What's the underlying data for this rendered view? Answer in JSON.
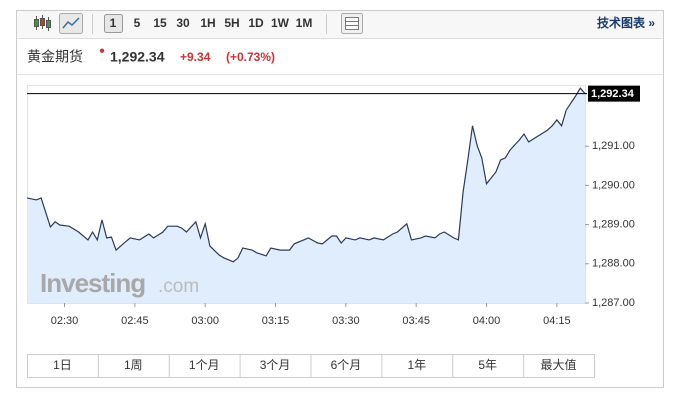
{
  "toolbar": {
    "intervals": [
      "1",
      "5",
      "15",
      "30",
      "1H",
      "5H",
      "1D",
      "1W",
      "1M"
    ],
    "link": "技术图表 »"
  },
  "chart_data": {
    "type": "line",
    "title": "黄金期货",
    "current_price": {
      "value": 1292.34,
      "label": "1,292.34"
    },
    "change": "+9.34",
    "change_pct": "(+0.73%)",
    "watermark": [
      "Investing",
      ".com"
    ],
    "color": "#2b3a5c",
    "fill_color": "#d9eafb",
    "reference_color": "#000000",
    "x": [
      "02:22",
      "02:24",
      "02:25",
      "02:27",
      "02:28",
      "02:29",
      "02:31",
      "02:33",
      "02:35",
      "02:36",
      "02:37",
      "02:38",
      "02:39",
      "02:40",
      "02:41",
      "02:43",
      "02:44",
      "02:46",
      "02:48",
      "02:49",
      "02:51",
      "02:52",
      "02:54",
      "02:55",
      "02:56",
      "02:58",
      "02:59",
      "03:00",
      "03:01",
      "03:03",
      "03:04",
      "03:06",
      "03:07",
      "03:08",
      "03:10",
      "03:11",
      "03:13",
      "03:14",
      "03:16",
      "03:18",
      "03:19",
      "03:21",
      "03:22",
      "03:24",
      "03:25",
      "03:27",
      "03:28",
      "03:29",
      "03:30",
      "03:32",
      "03:33",
      "03:35",
      "03:36",
      "03:38",
      "03:40",
      "03:41",
      "03:43",
      "03:44",
      "03:46",
      "03:47",
      "03:49",
      "03:50",
      "03:51",
      "03:53",
      "03:54",
      "03:55",
      "03:56",
      "03:57",
      "03:58",
      "03:59",
      "04:00",
      "04:02",
      "04:03",
      "04:04",
      "04:05",
      "04:07",
      "04:08",
      "04:09",
      "04:11",
      "04:13",
      "04:14",
      "04:15",
      "04:16",
      "04:17",
      "04:19",
      "04:20",
      "04:21"
    ],
    "values": [
      1289.68,
      1289.63,
      1289.68,
      1288.94,
      1289.07,
      1288.99,
      1288.96,
      1288.81,
      1288.61,
      1288.81,
      1288.61,
      1289.12,
      1288.66,
      1288.68,
      1288.35,
      1288.56,
      1288.66,
      1288.61,
      1288.76,
      1288.66,
      1288.81,
      1288.96,
      1288.96,
      1288.91,
      1288.81,
      1289.07,
      1288.66,
      1289.02,
      1288.45,
      1288.22,
      1288.15,
      1288.05,
      1288.15,
      1288.4,
      1288.35,
      1288.28,
      1288.2,
      1288.4,
      1288.35,
      1288.35,
      1288.51,
      1288.61,
      1288.66,
      1288.53,
      1288.51,
      1288.71,
      1288.71,
      1288.53,
      1288.66,
      1288.61,
      1288.66,
      1288.61,
      1288.66,
      1288.61,
      1288.76,
      1288.81,
      1289.02,
      1288.61,
      1288.66,
      1288.71,
      1288.66,
      1288.76,
      1288.81,
      1288.66,
      1288.61,
      1289.83,
      1290.65,
      1291.52,
      1291.01,
      1290.7,
      1290.04,
      1290.34,
      1290.65,
      1290.7,
      1290.9,
      1291.16,
      1291.31,
      1291.11,
      1291.26,
      1291.41,
      1291.52,
      1291.67,
      1291.52,
      1291.92,
      1292.28,
      1292.48,
      1292.34
    ],
    "xlim": [
      "02:22",
      "04:21"
    ],
    "xticks": [
      "02:30",
      "02:45",
      "03:00",
      "03:15",
      "03:30",
      "03:45",
      "04:00",
      "04:15"
    ],
    "ylim": [
      1287,
      1292.56
    ],
    "yticks": [
      {
        "value": 1287,
        "label": "1,287.00"
      },
      {
        "value": 1288,
        "label": "1,288.00"
      },
      {
        "value": 1289,
        "label": "1,289.00"
      },
      {
        "value": 1290,
        "label": "1,290.00"
      },
      {
        "value": 1291,
        "label": "1,291.00"
      }
    ],
    "ranges": [
      "1日",
      "1周",
      "1个月",
      "3个月",
      "6个月",
      "1年",
      "5年",
      "最大值"
    ]
  }
}
